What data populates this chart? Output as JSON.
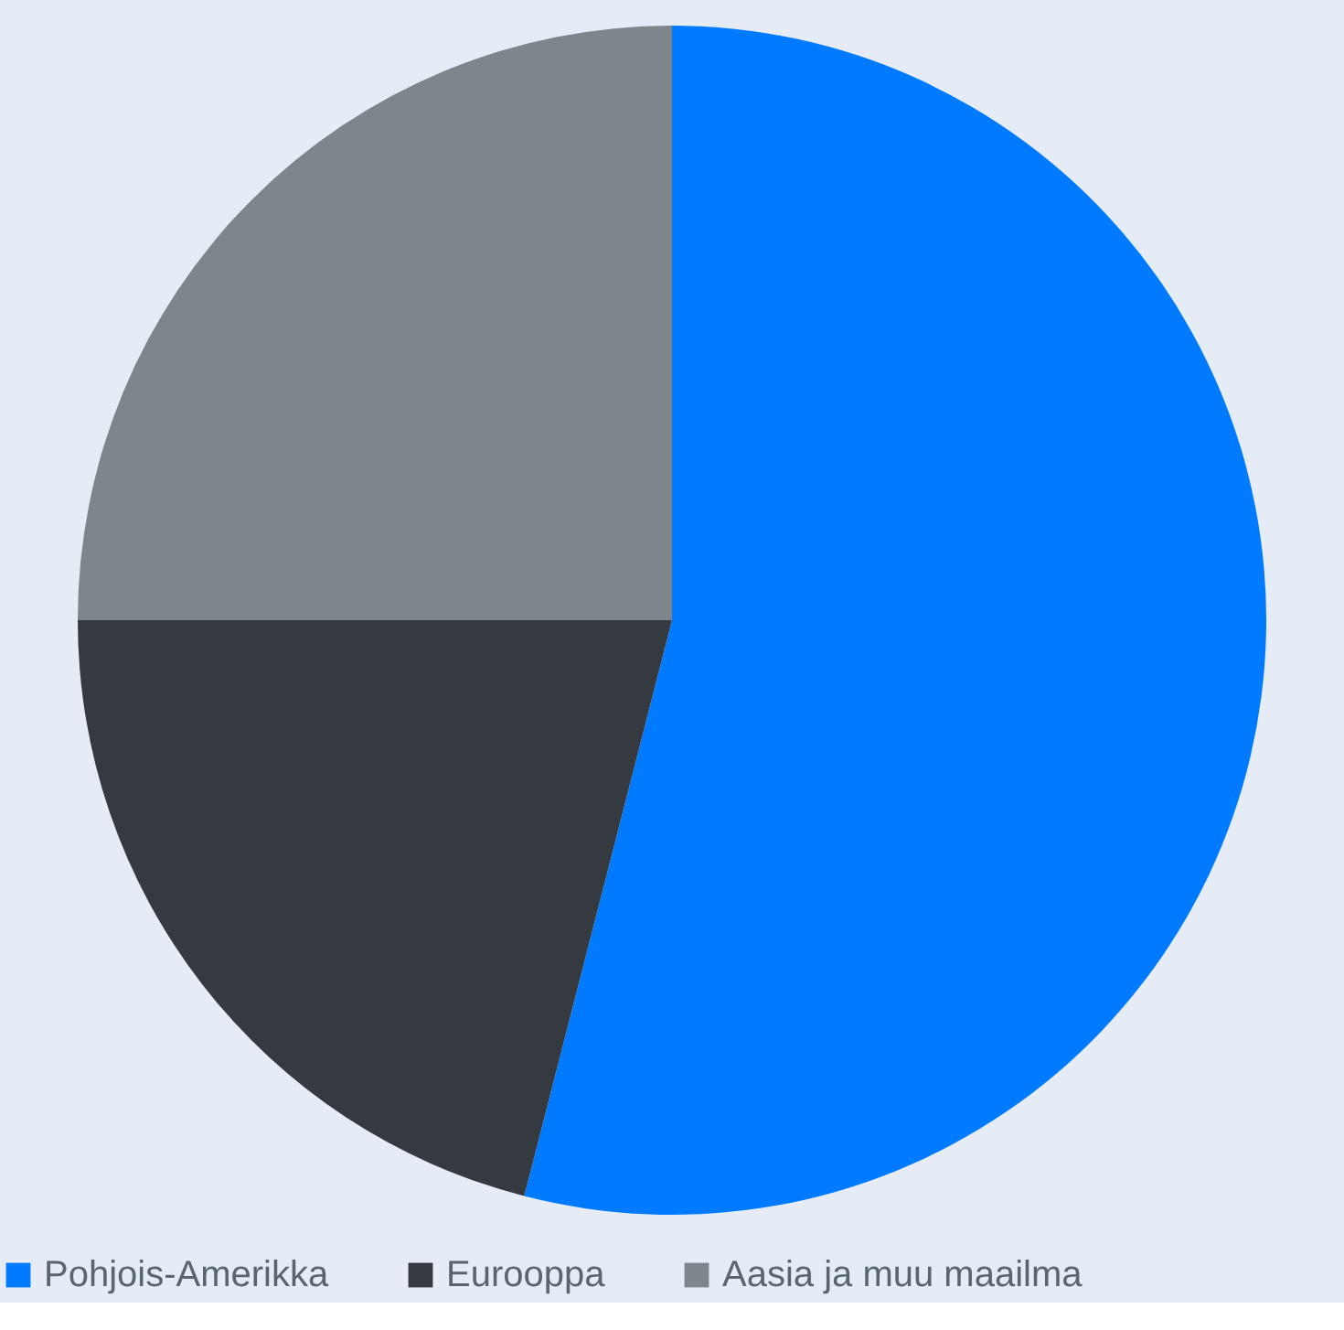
{
  "chart_data": {
    "type": "pie",
    "categories": [
      "Pohjois-Amerikka",
      "Eurooppa",
      "Aasia ja muu maailma"
    ],
    "values": [
      54,
      21,
      25
    ],
    "colors": [
      "#007bff",
      "#343a40",
      "#7c868b"
    ],
    "legend": "bottom"
  }
}
